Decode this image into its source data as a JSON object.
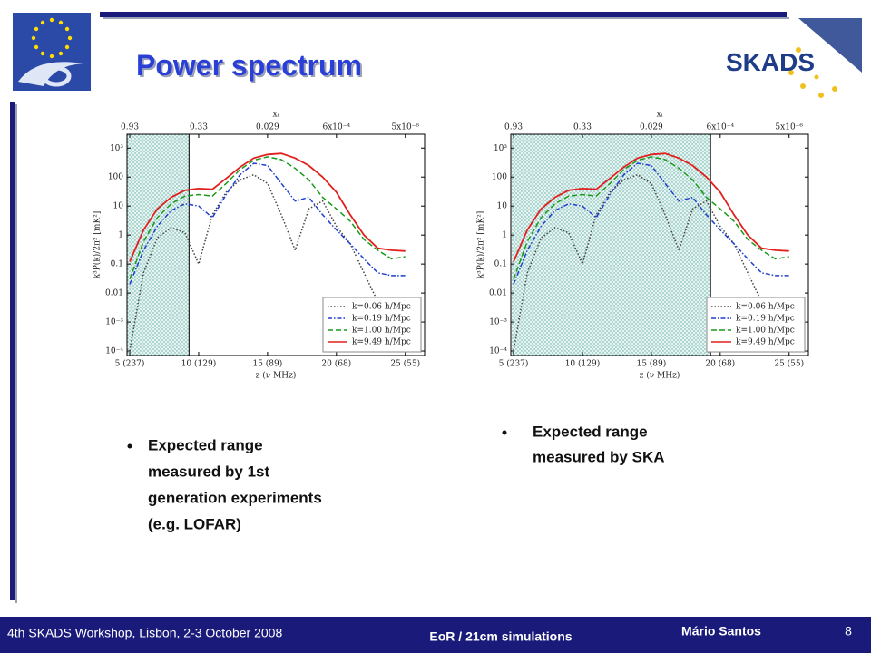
{
  "header": {
    "title": "Power spectrum",
    "logo_text": "SKADS"
  },
  "chart_data": [
    {
      "type": "line",
      "x_label": "z (ν MHz)",
      "y_label": "k³P(k)/2π² [mK²]",
      "x2_label": "xᵢ",
      "log_y": true,
      "legend": "lower right",
      "shaded_region": [
        4.8,
        9.3
      ],
      "x": [
        5,
        6,
        7,
        8,
        9,
        10,
        11,
        12,
        13,
        14,
        15,
        16,
        17,
        18,
        19,
        20,
        21,
        22,
        23,
        24,
        25
      ],
      "xlim": [
        4.8,
        26.4
      ],
      "ylim": [
        7e-05,
        3000
      ],
      "xticks": [
        {
          "value": 5,
          "label": "5 (237)"
        },
        {
          "value": 10,
          "label": "10 (129)"
        },
        {
          "value": 15,
          "label": "15 (89)"
        },
        {
          "value": 20,
          "label": "20 (68)"
        },
        {
          "value": 25,
          "label": "25 (55)"
        }
      ],
      "x2ticks": [
        {
          "value": 5,
          "label": "0.93"
        },
        {
          "value": 10,
          "label": "0.33"
        },
        {
          "value": 15,
          "label": "0.029"
        },
        {
          "value": 20,
          "label": "6x10⁻⁴"
        },
        {
          "value": 25,
          "label": "5x10⁻⁶"
        }
      ],
      "yticks": [
        {
          "value": 0.0001,
          "label": "10⁻⁴"
        },
        {
          "value": 0.001,
          "label": "10⁻³"
        },
        0.01,
        0.1,
        1,
        10,
        100,
        {
          "value": 1000,
          "label": "10³"
        }
      ],
      "series": [
        {
          "name": "k=0.06 h/Mpc",
          "color": "#444444",
          "style": "dotted",
          "values": [
            0.0001,
            0.05,
            0.8,
            1.8,
            1.2,
            0.1,
            5,
            30,
            80,
            120,
            60,
            5,
            0.3,
            8,
            15,
            2,
            0.5,
            0.05,
            0.005,
            0.0005,
            null
          ]
        },
        {
          "name": "k=0.19 h/Mpc",
          "color": "#1f3fd0",
          "style": "dashdot",
          "values": [
            0.02,
            0.3,
            2,
            7,
            12,
            10,
            4,
            25,
            120,
            300,
            250,
            60,
            15,
            20,
            5,
            1.5,
            0.5,
            0.15,
            0.05,
            0.04,
            0.04
          ]
        },
        {
          "name": "k=1.00 h/Mpc",
          "color": "#1a9a1a",
          "style": "dashed",
          "values": [
            0.03,
            0.6,
            4,
            12,
            22,
            25,
            22,
            60,
            180,
            380,
            500,
            400,
            200,
            80,
            20,
            8,
            3,
            0.7,
            0.3,
            0.15,
            0.18
          ]
        },
        {
          "name": "k=9.49 h/Mpc",
          "color": "#e0201c",
          "style": "solid",
          "values": [
            0.12,
            1.5,
            8,
            20,
            35,
            40,
            38,
            90,
            220,
            450,
            600,
            650,
            450,
            250,
            100,
            30,
            5,
            1,
            0.35,
            0.3,
            0.28
          ]
        }
      ]
    },
    {
      "type": "line",
      "x_label": "z (ν MHz)",
      "y_label": "k³P(k)/2π² [mK²]",
      "x2_label": "xᵢ",
      "log_y": true,
      "legend": "lower right",
      "shaded_region": [
        4.8,
        19.3
      ],
      "x": [
        5,
        6,
        7,
        8,
        9,
        10,
        11,
        12,
        13,
        14,
        15,
        16,
        17,
        18,
        19,
        20,
        21,
        22,
        23,
        24,
        25
      ],
      "xlim": [
        4.8,
        26.4
      ],
      "ylim": [
        7e-05,
        3000
      ],
      "xticks": [
        {
          "value": 5,
          "label": "5 (237)"
        },
        {
          "value": 10,
          "label": "10 (129)"
        },
        {
          "value": 15,
          "label": "15 (89)"
        },
        {
          "value": 20,
          "label": "20 (68)"
        },
        {
          "value": 25,
          "label": "25 (55)"
        }
      ],
      "x2ticks": [
        {
          "value": 5,
          "label": "0.93"
        },
        {
          "value": 10,
          "label": "0.33"
        },
        {
          "value": 15,
          "label": "0.029"
        },
        {
          "value": 20,
          "label": "6x10⁻⁴"
        },
        {
          "value": 25,
          "label": "5x10⁻⁶"
        }
      ],
      "yticks": [
        {
          "value": 0.0001,
          "label": "10⁻⁴"
        },
        {
          "value": 0.001,
          "label": "10⁻³"
        },
        0.01,
        0.1,
        1,
        10,
        100,
        {
          "value": 1000,
          "label": "10³"
        }
      ],
      "series": [
        {
          "name": "k=0.06 h/Mpc",
          "color": "#444444",
          "style": "dotted",
          "values": [
            0.0001,
            0.05,
            0.8,
            1.8,
            1.2,
            0.1,
            5,
            30,
            80,
            120,
            60,
            5,
            0.3,
            8,
            15,
            2,
            0.5,
            0.05,
            0.005,
            0.0005,
            null
          ]
        },
        {
          "name": "k=0.19 h/Mpc",
          "color": "#1f3fd0",
          "style": "dashdot",
          "values": [
            0.02,
            0.3,
            2,
            7,
            12,
            10,
            4,
            25,
            120,
            300,
            250,
            60,
            15,
            20,
            5,
            1.5,
            0.5,
            0.15,
            0.05,
            0.04,
            0.04
          ]
        },
        {
          "name": "k=1.00 h/Mpc",
          "color": "#1a9a1a",
          "style": "dashed",
          "values": [
            0.03,
            0.6,
            4,
            12,
            22,
            25,
            22,
            60,
            180,
            380,
            500,
            400,
            200,
            80,
            20,
            8,
            3,
            0.7,
            0.3,
            0.15,
            0.18
          ]
        },
        {
          "name": "k=9.49 h/Mpc",
          "color": "#e0201c",
          "style": "solid",
          "values": [
            0.12,
            1.5,
            8,
            20,
            35,
            40,
            38,
            90,
            220,
            450,
            600,
            650,
            450,
            250,
            100,
            30,
            5,
            1,
            0.35,
            0.3,
            0.28
          ]
        }
      ]
    }
  ],
  "bullets_left": [
    "Expected range",
    "measured by 1st",
    "generation experiments",
    "(e.g. LOFAR)"
  ],
  "bullets_right": [
    "Expected range",
    "measured by SKA"
  ],
  "footer": {
    "left": "4th SKADS Workshop, Lisbon, 2-3 October 2008",
    "center": "EoR / 21cm simulations",
    "author": "Mário Santos",
    "page": "8"
  }
}
